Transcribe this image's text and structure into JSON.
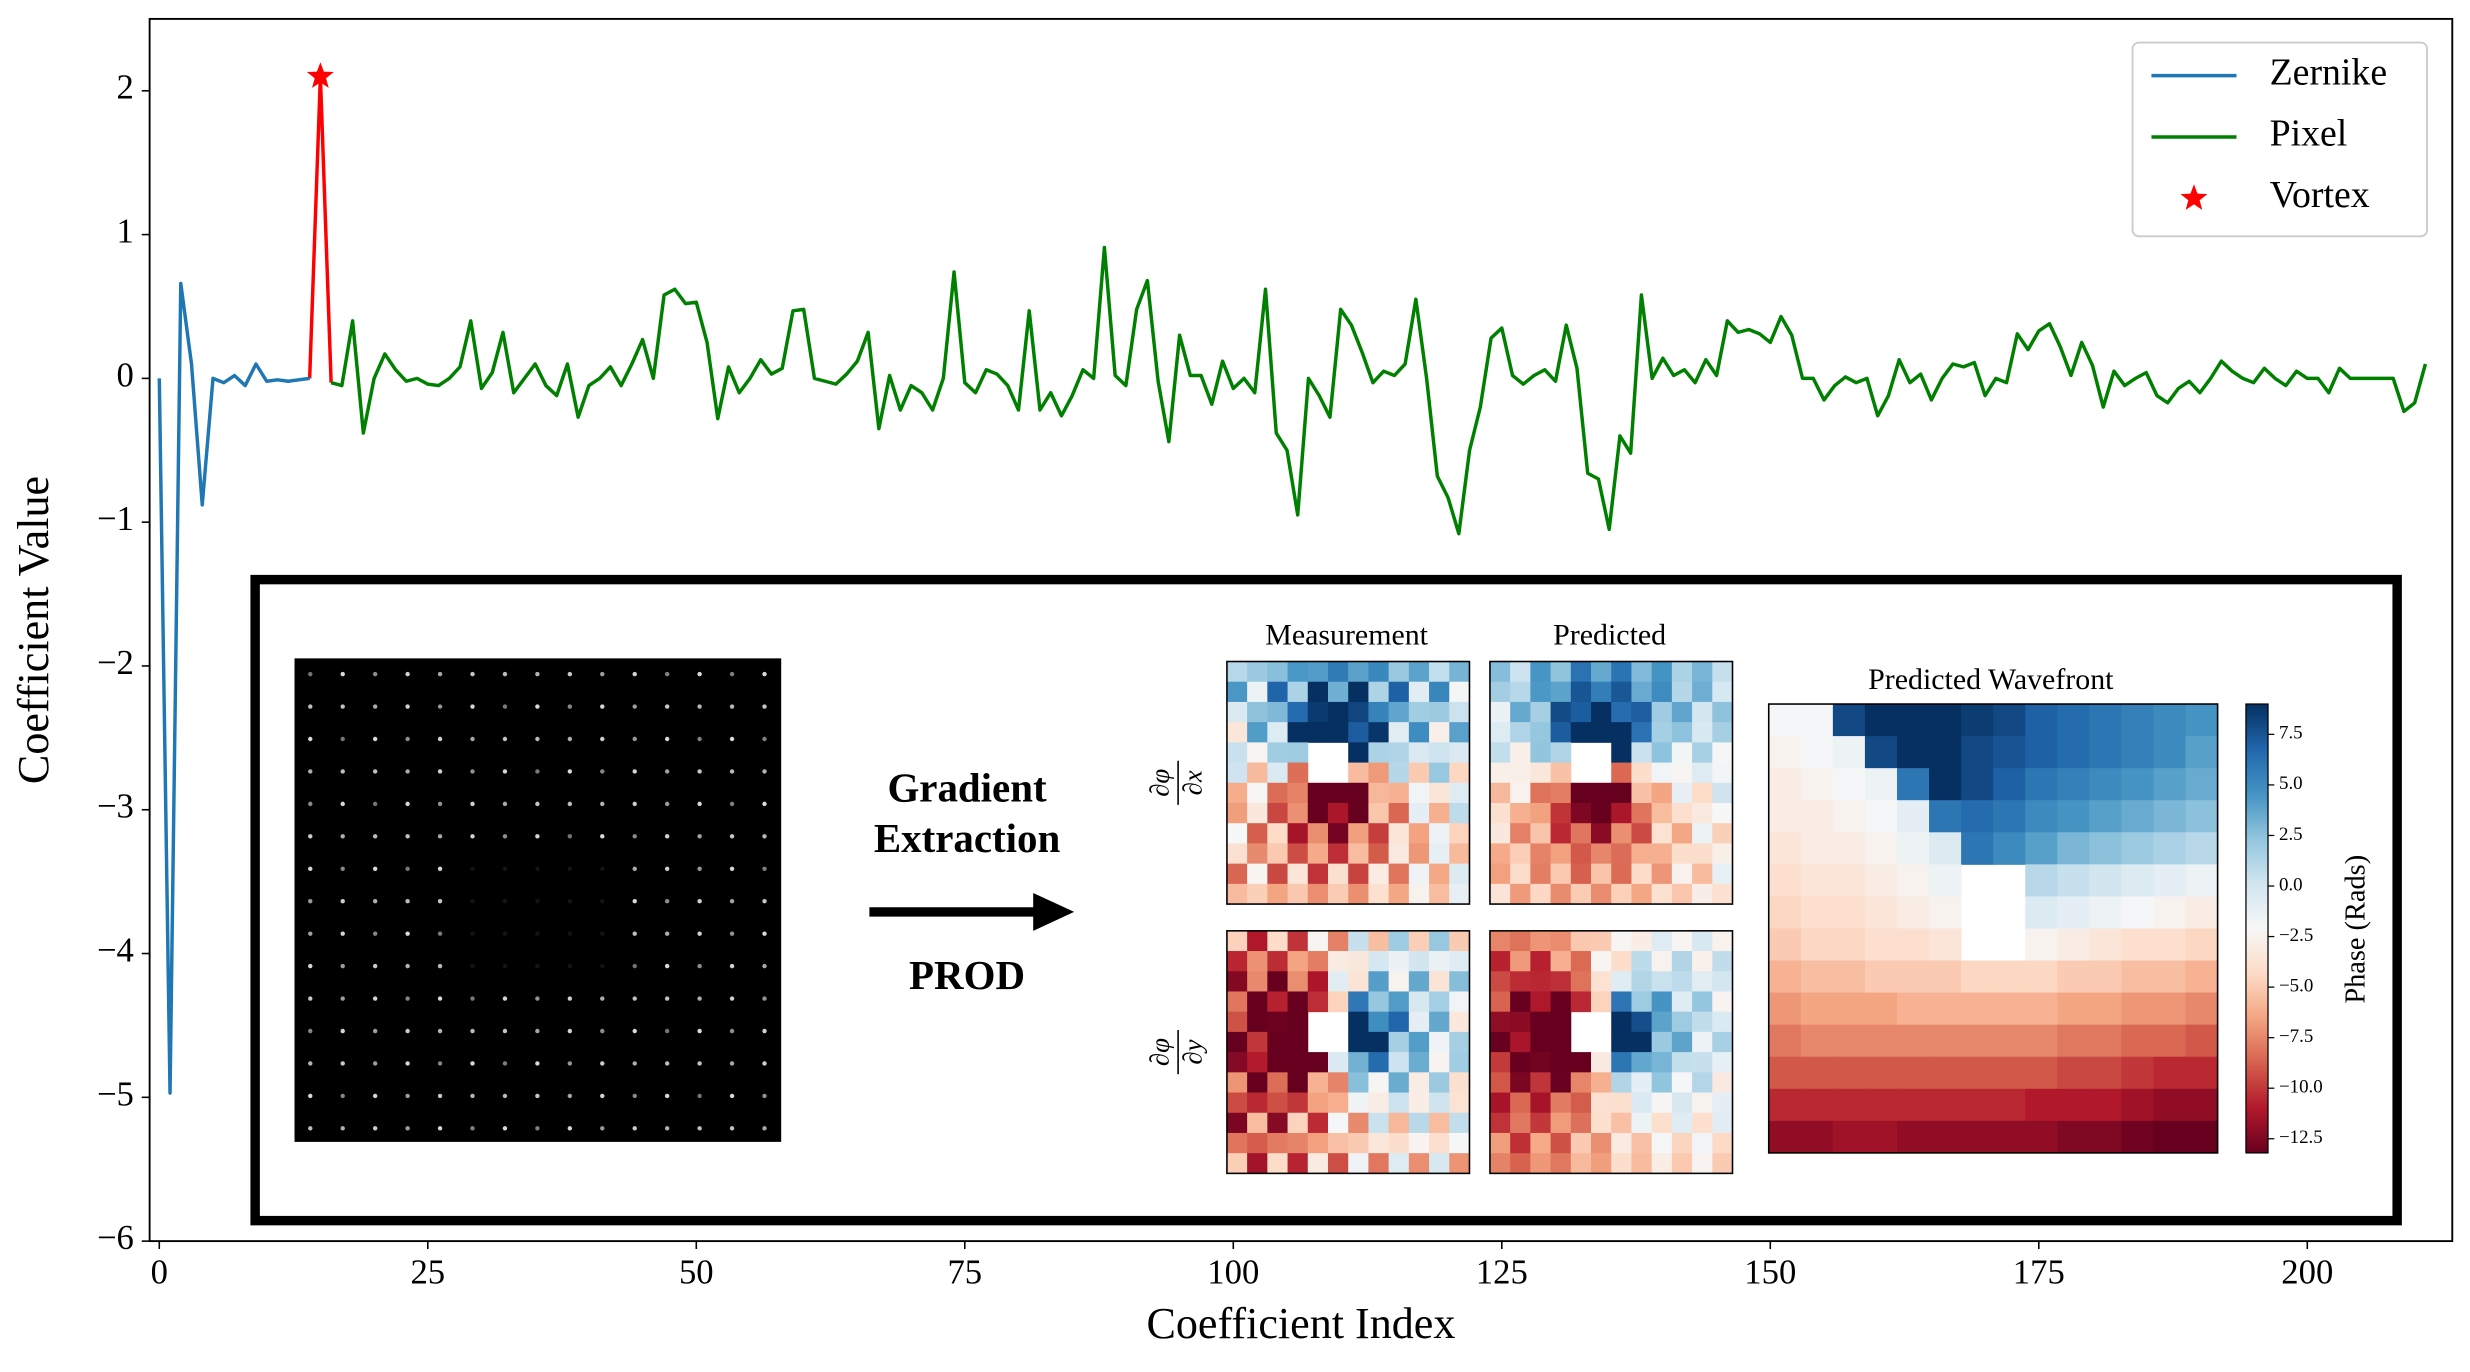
{
  "chart_data": [
    {
      "type": "line",
      "xlabel": "Coefficient Index",
      "ylabel": "Coefficient Value",
      "xlim": [
        -0.9,
        213.5
      ],
      "ylim": [
        -6,
        2.5
      ],
      "xticks": [
        0,
        25,
        50,
        75,
        100,
        125,
        150,
        175,
        200
      ],
      "yticks": [
        {
          "value": -6,
          "label": "−6"
        },
        {
          "value": -5,
          "label": "−5"
        },
        {
          "value": -4,
          "label": "−4"
        },
        {
          "value": -3,
          "label": "−3"
        },
        {
          "value": -2,
          "label": "−2"
        },
        {
          "value": -1,
          "label": "−1"
        },
        0,
        1,
        2
      ],
      "legend": "upper right",
      "series": [
        {
          "name": "Zernike",
          "color": "#1f77b4",
          "x": [
            0,
            1,
            2,
            3,
            4,
            5,
            6,
            7,
            8,
            9,
            10,
            11,
            12,
            13,
            14
          ],
          "values": [
            0,
            -4.97,
            0.66,
            0.1,
            -0.88,
            0,
            -0.03,
            0.02,
            -0.05,
            0.1,
            -0.02,
            -0.01,
            -0.02,
            -0.01,
            0
          ]
        },
        {
          "name": "Pixel",
          "color": "#008000",
          "x": [
            16,
            17,
            18,
            19,
            20,
            21,
            22,
            23,
            24,
            25,
            26,
            27,
            28,
            29,
            30,
            31,
            32,
            33,
            34,
            35,
            36,
            37,
            38,
            39,
            40,
            41,
            42,
            43,
            44,
            45,
            46,
            47,
            48,
            49,
            50,
            51,
            52,
            53,
            54,
            55,
            56,
            57,
            58,
            59,
            60,
            61,
            62,
            63,
            64,
            65,
            66,
            67,
            68,
            69,
            70,
            71,
            72,
            73,
            74,
            75,
            76,
            77,
            78,
            79,
            80,
            81,
            82,
            83,
            84,
            85,
            86,
            87,
            88,
            89,
            90,
            91,
            92,
            93,
            94,
            95,
            96,
            97,
            98,
            99,
            100,
            101,
            102,
            103,
            104,
            105,
            106,
            107,
            108,
            109,
            110,
            111,
            112,
            113,
            114,
            115,
            116,
            117,
            118,
            119,
            120,
            121,
            122,
            123,
            124,
            125,
            126,
            127,
            128,
            129,
            130,
            131,
            132,
            133,
            134,
            135,
            136,
            137,
            138,
            139,
            140,
            141,
            142,
            143,
            144,
            145,
            146,
            147,
            148,
            149,
            150,
            151,
            152,
            153,
            154,
            155,
            156,
            157,
            158,
            159,
            160,
            161,
            162,
            163,
            164,
            165,
            166,
            167,
            168,
            169,
            170,
            171,
            172,
            173,
            174,
            175,
            176,
            177,
            178,
            179,
            180,
            181,
            182,
            183,
            184,
            185,
            186,
            187,
            188,
            189,
            190,
            191,
            192,
            193,
            194,
            195,
            196,
            197,
            198,
            199,
            200,
            201,
            202,
            203,
            204,
            205,
            206,
            207,
            208,
            209,
            210,
            211
          ],
          "values": [
            -0.03,
            -0.05,
            0.4,
            -0.38,
            0,
            0.17,
            0.06,
            -0.02,
            0,
            -0.04,
            -0.05,
            0,
            0.08,
            0.4,
            -0.07,
            0.04,
            0.32,
            -0.1,
            0,
            0.1,
            -0.05,
            -0.12,
            0.1,
            -0.27,
            -0.05,
            0,
            0.08,
            -0.05,
            0.1,
            0.27,
            0,
            0.58,
            0.62,
            0.52,
            0.53,
            0.25,
            -0.28,
            0.08,
            -0.1,
            0,
            0.13,
            0.03,
            0.07,
            0.47,
            0.48,
            0,
            -0.02,
            -0.04,
            0.03,
            0.12,
            0.32,
            -0.35,
            0.02,
            -0.22,
            -0.05,
            -0.1,
            -0.22,
            0,
            0.74,
            -0.03,
            -0.1,
            0.06,
            0.03,
            -0.05,
            -0.22,
            0.47,
            -0.22,
            -0.1,
            -0.26,
            -0.12,
            0.06,
            0,
            0.91,
            0.02,
            -0.05,
            0.48,
            0.68,
            -0.02,
            -0.44,
            0.3,
            0.02,
            0.02,
            -0.18,
            0.12,
            -0.07,
            0,
            -0.1,
            0.62,
            -0.38,
            -0.5,
            -0.95,
            0,
            -0.12,
            -0.27,
            0.48,
            0.37,
            0.18,
            -0.03,
            0.05,
            0.02,
            0.1,
            0.55,
            0,
            -0.68,
            -0.83,
            -1.08,
            -0.5,
            -0.2,
            0.28,
            0.35,
            0.02,
            -0.04,
            0.02,
            0.06,
            -0.02,
            0.37,
            0.07,
            -0.66,
            -0.7,
            -1.05,
            -0.4,
            -0.52,
            0.58,
            0,
            0.14,
            0.02,
            0.06,
            -0.03,
            0.13,
            0.02,
            0.4,
            0.32,
            0.34,
            0.31,
            0.25,
            0.43,
            0.3,
            0,
            0,
            -0.15,
            -0.05,
            0.01,
            -0.03,
            0,
            -0.26,
            -0.12,
            0.13,
            -0.03,
            0.03,
            -0.15,
            0,
            0.1,
            0.08,
            0.11,
            -0.12,
            0,
            -0.03,
            0.31,
            0.2,
            0.33,
            0.38,
            0.22,
            0.02,
            0.25,
            0.09,
            -0.2,
            0.05,
            -0.05,
            0,
            0.04,
            -0.12,
            -0.17,
            -0.07,
            -0.02,
            -0.1,
            0,
            0.12,
            0.05,
            0,
            -0.03,
            0.07,
            0,
            -0.05,
            0.05,
            0,
            0,
            -0.1,
            0.07,
            0,
            0,
            0,
            0,
            0,
            -0.23,
            -0.17,
            0.1
          ]
        },
        {
          "name": "Vortex",
          "color": "#ff0000",
          "marker": "star",
          "x": [
            15
          ],
          "values": [
            2.1
          ]
        }
      ]
    },
    {
      "type": "heatmap",
      "arrow_labels": [
        "Gradient",
        "Extraction"
      ],
      "method": "PROD",
      "column_titles": [
        "Measurement",
        "Predicted"
      ],
      "row_labels": [
        {
          "numerator": "∂φ",
          "denominator": "∂x"
        },
        {
          "numerator": "∂φ",
          "denominator": "∂y"
        }
      ],
      "title": "Predicted Wavefront",
      "colorbar_label": "Phase (Rads)",
      "clim": [
        -13.2,
        9.0
      ],
      "colorbar_ticks": [
        7.5,
        {
          "value": 5,
          "label": "5.0"
        },
        2.5,
        {
          "value": 0,
          "label": "0.0"
        },
        {
          "value": -2.5,
          "label": "−2.5"
        },
        {
          "value": -5,
          "label": "−5.0"
        },
        {
          "value": -7.5,
          "label": "−7.5"
        },
        {
          "value": -10,
          "label": "−10.0"
        },
        {
          "value": -12.5,
          "label": "−12.5"
        }
      ],
      "values": [
        [
          -2,
          -2,
          8,
          9,
          9,
          9,
          8.5,
          8,
          7,
          6.5,
          6,
          5.5,
          5,
          4.5
        ],
        [
          -2.5,
          -2,
          -1.5,
          8,
          9,
          9,
          8,
          7.5,
          7,
          6.5,
          6,
          5.5,
          5,
          4
        ],
        [
          -3,
          -2.5,
          -2,
          -1.5,
          6,
          9,
          8,
          7,
          6,
          5.5,
          5,
          4.5,
          4,
          3.5
        ],
        [
          -3,
          -3,
          -2.5,
          -2,
          -1,
          6,
          6.5,
          6,
          5,
          4.5,
          4,
          3.5,
          3,
          2.5
        ],
        [
          -3.5,
          -3,
          -3,
          -2.5,
          -1.5,
          -0.5,
          6,
          5,
          4,
          3,
          2.5,
          2,
          1.5,
          1
        ],
        [
          -4,
          -3.5,
          -3.5,
          -3,
          -2.5,
          -1.5,
          null,
          null,
          1,
          0.5,
          0,
          -0.5,
          -1,
          -1.5
        ],
        [
          -4.5,
          -4,
          -4,
          -3.5,
          -3,
          -2.5,
          null,
          null,
          -0.5,
          -1,
          -1.5,
          -2,
          -2.5,
          -3
        ],
        [
          -5,
          -4.5,
          -4.5,
          -4,
          -4,
          -3.5,
          null,
          null,
          -2.5,
          -3,
          -3.5,
          -4,
          -4,
          -4.5
        ],
        [
          -6,
          -5.5,
          -5.5,
          -5,
          -5,
          -5,
          -4.5,
          -4.5,
          -4.5,
          -5,
          -5,
          -5.5,
          -5.5,
          -6
        ],
        [
          -7,
          -6.5,
          -6.5,
          -6.5,
          -6,
          -6,
          -6,
          -6,
          -6,
          -6.5,
          -6.5,
          -7,
          -7,
          -7.5
        ],
        [
          -8,
          -7.5,
          -7.5,
          -7.5,
          -7.5,
          -7.5,
          -7.5,
          -7.5,
          -7.5,
          -8,
          -8,
          -8.5,
          -8.5,
          -9
        ],
        [
          -9,
          -9,
          -9,
          -9,
          -9,
          -9,
          -9,
          -9,
          -9,
          -9.5,
          -9.5,
          -10,
          -10.5,
          -10.5
        ],
        [
          -10.5,
          -10.5,
          -10.5,
          -10.5,
          -10.5,
          -10.5,
          -10.5,
          -10.5,
          -11,
          -11,
          -11,
          -11.5,
          -12,
          -12
        ],
        [
          -12,
          -12,
          -11.5,
          -11.5,
          -12,
          -12,
          -12,
          -12,
          -12,
          -12.5,
          -12.5,
          -13,
          -13.5,
          -13.5
        ]
      ]
    }
  ]
}
